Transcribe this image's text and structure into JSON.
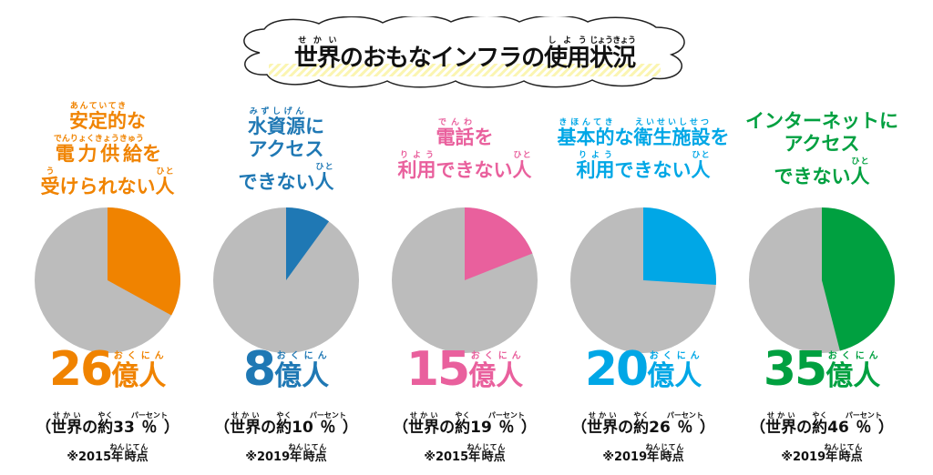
{
  "title": [
    {
      "t": "世界",
      "r": "せかい"
    },
    {
      "t": "のおもなインフラの"
    },
    {
      "t": "使用",
      "r": "しよう"
    },
    {
      "t": "状況",
      "r": "じょうきょう"
    }
  ],
  "chart_data": [
    {
      "type": "pie",
      "color": "#f08300",
      "percent": 33,
      "count": "26",
      "year_note": "2015",
      "headline": [
        [
          {
            "t": "安定的",
            "r": "あんていてき"
          },
          {
            "t": "な"
          }
        ],
        [
          {
            "t": "電力供給",
            "r": "でんりょくきょうきゅう"
          },
          {
            "t": "を"
          }
        ],
        [
          {
            "t": "受",
            "r": "う"
          },
          {
            "t": "けられない"
          },
          {
            "t": "人",
            "r": "ひと"
          }
        ]
      ]
    },
    {
      "type": "pie",
      "color": "#1f78b4",
      "percent": 10,
      "count": "8",
      "year_note": "2019",
      "headline": [
        [
          {
            "t": "水資源",
            "r": "みずしげん"
          },
          {
            "t": "に"
          }
        ],
        [
          {
            "t": "アクセス"
          }
        ],
        [
          {
            "t": "できない"
          },
          {
            "t": "人",
            "r": "ひと"
          }
        ]
      ]
    },
    {
      "type": "pie",
      "color": "#e9609d",
      "percent": 19,
      "count": "15",
      "year_note": "2015",
      "headline": [
        [
          {
            "t": "電話",
            "r": "でんわ"
          },
          {
            "t": "を"
          }
        ],
        [
          {
            "t": "利用",
            "r": "りよう"
          },
          {
            "t": "できない"
          },
          {
            "t": "人",
            "r": "ひと"
          }
        ]
      ]
    },
    {
      "type": "pie",
      "color": "#00a7e6",
      "percent": 26,
      "count": "20",
      "year_note": "2019",
      "headline": [
        [
          {
            "t": "基本的",
            "r": "きほんてき"
          },
          {
            "t": "な"
          },
          {
            "t": "衛生施設",
            "r": "えいせいしせつ"
          },
          {
            "t": "を"
          }
        ],
        [
          {
            "t": "利用",
            "r": "りよう"
          },
          {
            "t": "できない"
          },
          {
            "t": "人",
            "r": "ひと"
          }
        ]
      ]
    },
    {
      "type": "pie",
      "color": "#00a040",
      "percent": 46,
      "count": "35",
      "year_note": "2019",
      "headline": [
        [
          {
            "t": "インターネットに"
          }
        ],
        [
          {
            "t": "アクセス"
          }
        ],
        [
          {
            "t": "できない"
          },
          {
            "t": "人",
            "r": "ひと"
          }
        ]
      ]
    }
  ],
  "labels": {
    "oku": "億",
    "oku_r": "おく",
    "nin": "人",
    "nin_r": "にん",
    "share_open": "（",
    "sekai": "世界",
    "sekai_r": "せかい",
    "no": "の",
    "yaku": "約",
    "yaku_r": "やく",
    "pct": "％",
    "pct_r": "パーセント",
    "share_close": "）",
    "note_mark": "※",
    "nen": "年",
    "nen_r": "ねん",
    "jiten": "時点",
    "jiten_r": "じてん"
  },
  "rest_color": "#bcbcbc"
}
